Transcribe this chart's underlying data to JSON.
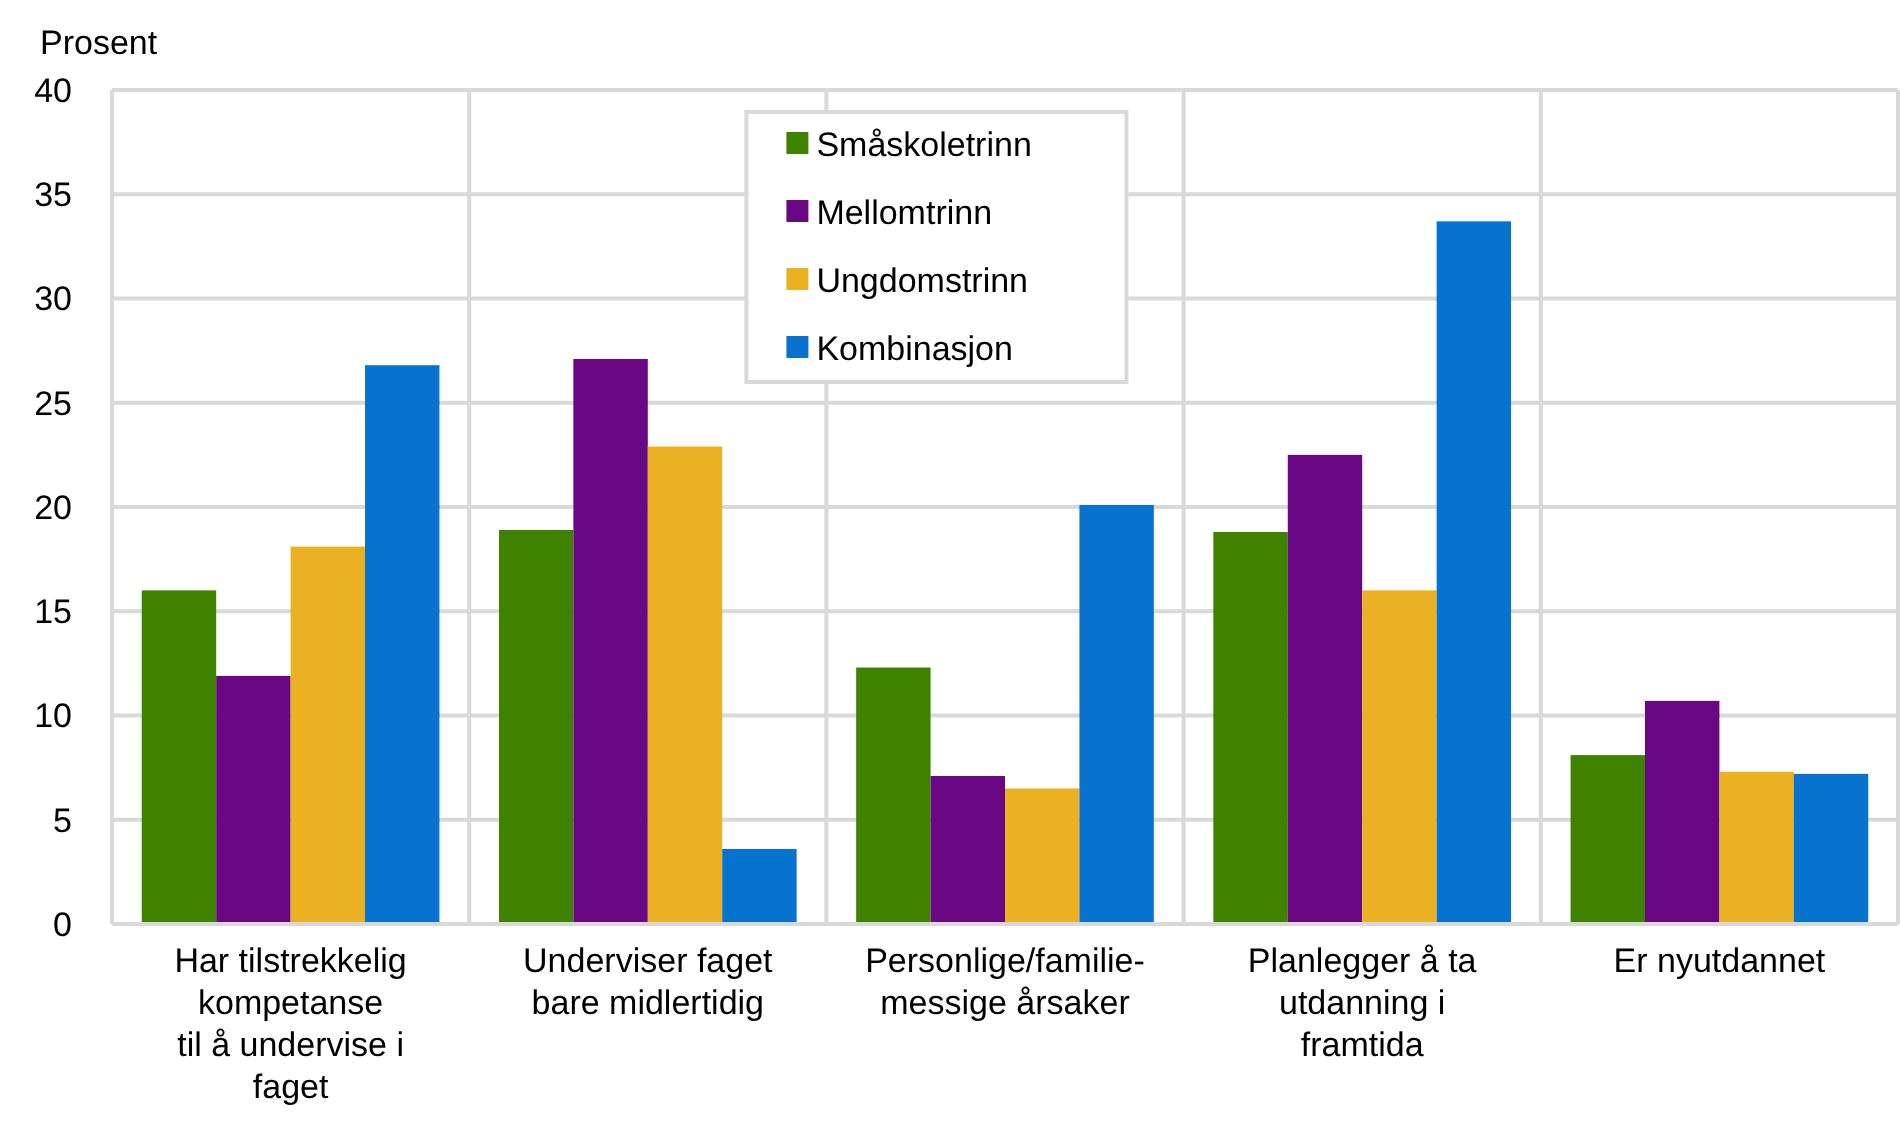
{
  "chart_data": {
    "type": "bar",
    "ylabel": "Prosent",
    "categories": [
      "Har tilstrekkelig\nkompetanse\ntil å undervise i\nfaget",
      "Underviser faget\nbare midlertidig",
      "Personlige/familie-\nmessige årsaker",
      "Planlegger å ta\nutdanning i\nframtida",
      "Er nyutdannet"
    ],
    "series": [
      {
        "name": "Småskoletrinn",
        "color": "#3f8200",
        "values": [
          16.0,
          18.9,
          12.3,
          18.8,
          8.1
        ]
      },
      {
        "name": "Mellomtrinn",
        "color": "#690784",
        "values": [
          11.9,
          27.1,
          7.1,
          22.5,
          10.7
        ]
      },
      {
        "name": "Ungdomstrinn",
        "color": "#eab222",
        "values": [
          18.1,
          22.9,
          6.5,
          16.0,
          7.3
        ]
      },
      {
        "name": "Kombinasjon",
        "color": "#0873cf",
        "values": [
          26.8,
          3.6,
          20.1,
          33.7,
          7.2
        ]
      }
    ],
    "ylim": [
      0,
      40
    ],
    "yticks": [
      0,
      5,
      10,
      15,
      20,
      25,
      30,
      35,
      40
    ],
    "grid": true,
    "legend": "top"
  }
}
